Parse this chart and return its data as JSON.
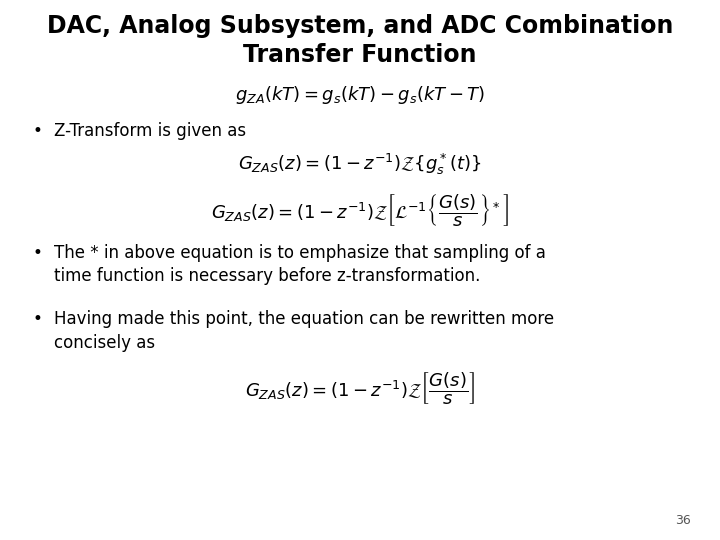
{
  "title_line1": "DAC, Analog Subsystem, and ADC Combination",
  "title_line2": "Transfer Function",
  "title_fontsize": 17,
  "body_fontsize": 12,
  "math_fontsize": 13,
  "small_math_fontsize": 12,
  "background_color": "#ffffff",
  "text_color": "#000000",
  "slide_number": "36",
  "eq0": "$g_{ZA}(kT) = g_s(kT) - g_s(kT - T)$",
  "bullet1": "Z-Transform is given as",
  "eq1a": "$G_{ZAS}(z) = (1 - z^{-1})\\mathcal{Z}\\{g_s^*(t)\\}$",
  "eq1b": "$G_{ZAS}(z) = (1 - z^{-1})\\mathcal{Z}\\left[\\mathcal{L}^{-1}\\left\\{\\dfrac{G(s)}{s}\\right\\}^*\\right]$",
  "b2_line1": "The * in above equation is to emphasize that sampling of a",
  "b2_line2": "time function is necessary before z-transformation.",
  "b3_line1": "Having made this point, the equation can be rewritten more",
  "b3_line2": "concisely as",
  "eq3": "$G_{ZAS}(z) = (1 - z^{-1})\\mathcal{Z}\\left[\\dfrac{G(s)}{s}\\right]$"
}
